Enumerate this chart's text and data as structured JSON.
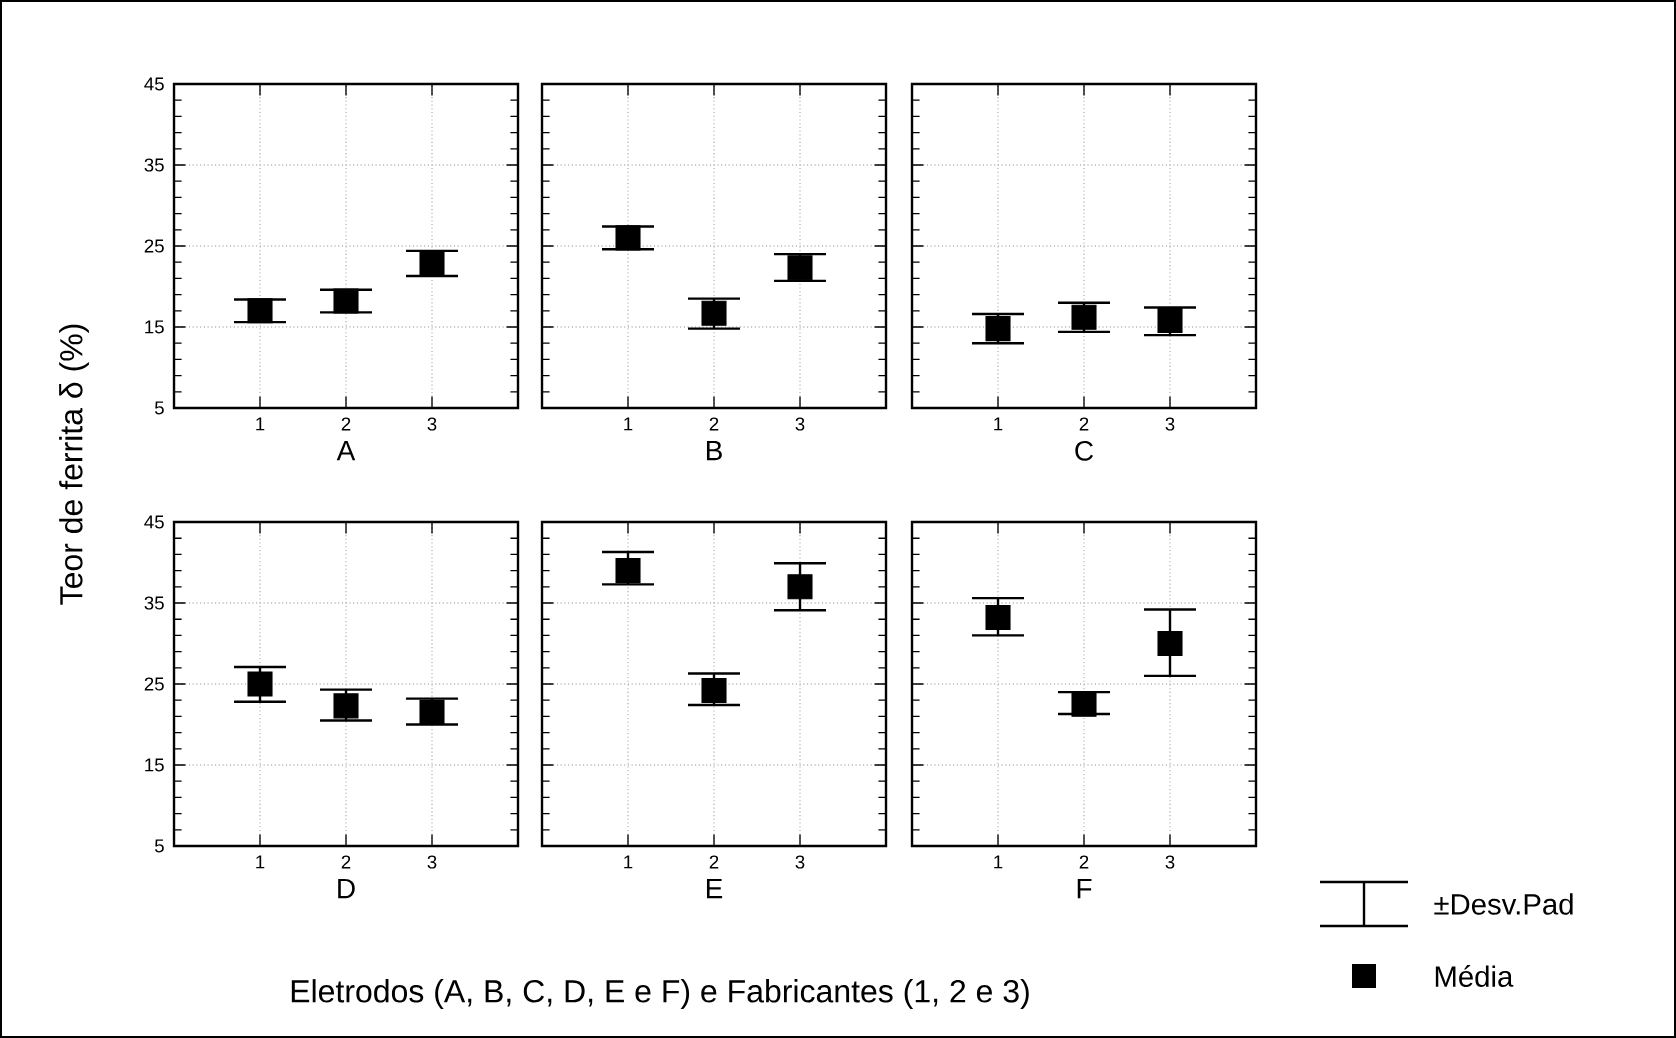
{
  "chart_data": [
    {
      "type": "scatter",
      "xlabel": "A",
      "ylabel": "Teor de ferrita δ (%)",
      "categories": [
        "1",
        "2",
        "3"
      ],
      "ylim": [
        5,
        45
      ],
      "yticks": [
        5,
        15,
        25,
        35,
        45
      ],
      "grid": true,
      "marker": "square",
      "series": [
        {
          "color": "#000000",
          "values": [
            17,
            18.2,
            22.8
          ],
          "errors": [
            [
              15.6,
              18.4
            ],
            [
              16.8,
              19.6
            ],
            [
              21.3,
              24.4
            ]
          ]
        }
      ]
    },
    {
      "type": "scatter",
      "xlabel": "B",
      "categories": [
        "1",
        "2",
        "3"
      ],
      "ylim": [
        5,
        45
      ],
      "yticks": [
        5,
        15,
        25,
        35,
        45
      ],
      "grid": true,
      "marker": "square",
      "tick_labels": "x",
      "series": [
        {
          "color": "#000000",
          "values": [
            26,
            16.7,
            22.3
          ],
          "errors": [
            [
              24.6,
              27.4
            ],
            [
              14.8,
              18.5
            ],
            [
              20.7,
              24
            ]
          ]
        }
      ]
    },
    {
      "type": "scatter",
      "xlabel": "C",
      "categories": [
        "1",
        "2",
        "3"
      ],
      "ylim": [
        5,
        45
      ],
      "yticks": [
        5,
        15,
        25,
        35,
        45
      ],
      "grid": true,
      "marker": "square",
      "tick_labels": "x",
      "series": [
        {
          "color": "#000000",
          "values": [
            14.8,
            16.2,
            15.8
          ],
          "errors": [
            [
              13,
              16.6
            ],
            [
              14.4,
              18
            ],
            [
              14,
              17.4
            ]
          ]
        }
      ]
    },
    {
      "type": "scatter",
      "xlabel": "D",
      "categories": [
        "1",
        "2",
        "3"
      ],
      "ylim": [
        5,
        45
      ],
      "yticks": [
        5,
        15,
        25,
        35,
        45
      ],
      "grid": true,
      "marker": "square",
      "series": [
        {
          "color": "#000000",
          "values": [
            25,
            22.3,
            21.5
          ],
          "errors": [
            [
              22.8,
              27.1
            ],
            [
              20.5,
              24.3
            ],
            [
              20,
              23.2
            ]
          ]
        }
      ]
    },
    {
      "type": "scatter",
      "xlabel": "E",
      "categories": [
        "1",
        "2",
        "3"
      ],
      "ylim": [
        5,
        45
      ],
      "yticks": [
        5,
        15,
        25,
        35,
        45
      ],
      "grid": true,
      "marker": "square",
      "tick_labels": "x",
      "series": [
        {
          "color": "#000000",
          "values": [
            39,
            24.2,
            37
          ],
          "errors": [
            [
              37.3,
              41.3
            ],
            [
              22.4,
              26.3
            ],
            [
              34.1,
              39.9
            ]
          ]
        }
      ]
    },
    {
      "type": "scatter",
      "xlabel": "F",
      "categories": [
        "1",
        "2",
        "3"
      ],
      "ylim": [
        5,
        45
      ],
      "yticks": [
        5,
        15,
        25,
        35,
        45
      ],
      "grid": true,
      "marker": "square",
      "tick_labels": "x",
      "legend": "bottom right",
      "annotations": [
        "±Desv.Pad",
        "Eletrodos (A, B, C, D, E e F) e Fabricantes (1, 2 e 3)"
      ],
      "series": [
        {
          "name": "Média",
          "color": "#000000",
          "values": [
            33.2,
            22.5,
            30
          ],
          "errors": [
            [
              31,
              35.6
            ],
            [
              21.3,
              24
            ],
            [
              26,
              34.2
            ]
          ]
        }
      ]
    }
  ]
}
